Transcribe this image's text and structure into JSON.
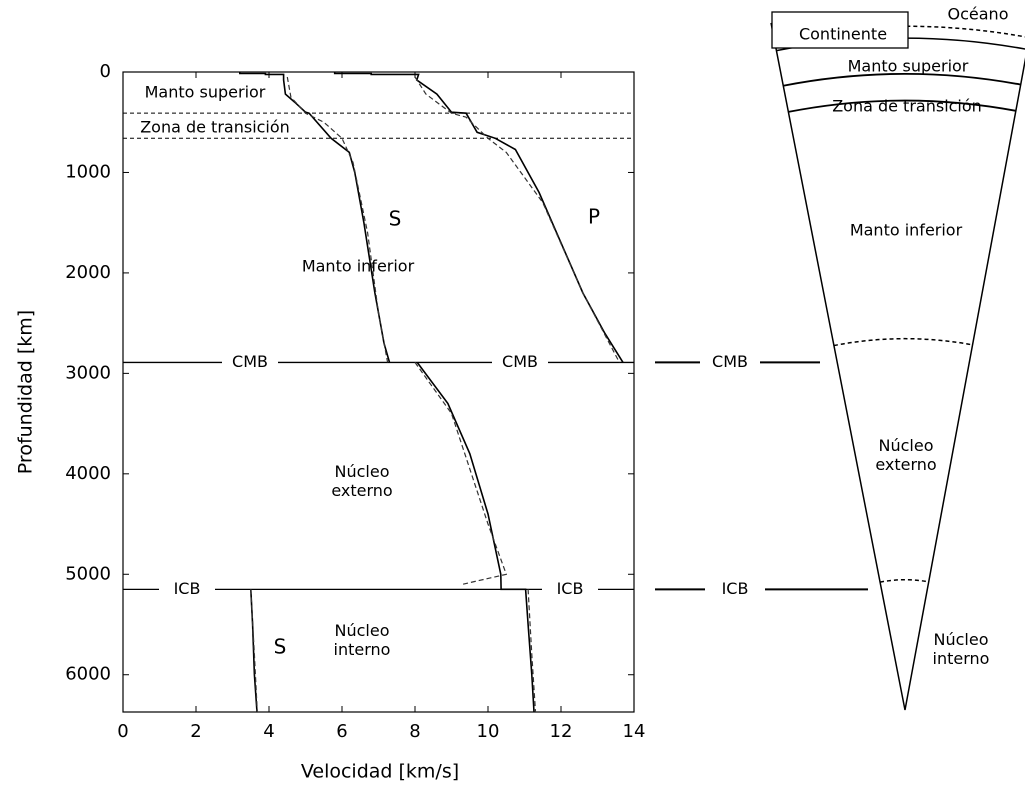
{
  "chart_data": {
    "type": "line",
    "xlabel": "Velocidad [km/s]",
    "ylabel": "Profundidad [km]",
    "xlim": [
      0,
      14
    ],
    "xticks": [
      0,
      2,
      4,
      6,
      8,
      10,
      12,
      14
    ],
    "ylim": [
      0,
      6371
    ],
    "yticks": [
      0,
      1000,
      2000,
      3000,
      4000,
      5000,
      6000
    ],
    "y_inverted": true,
    "grid": false,
    "series": [
      {
        "name": "S",
        "color": "#000000",
        "dash": false,
        "x": [
          3.2,
          3.2,
          3.9,
          3.9,
          4.4,
          4.4,
          4.45,
          4.7,
          5.0,
          5.1,
          5.7,
          6.2,
          6.35,
          6.6,
          6.9,
          7.15,
          7.3,
          null,
          3.5,
          3.55,
          3.6,
          3.67
        ],
        "values": [
          0,
          15,
          15,
          24,
          24,
          80,
          220,
          300,
          400,
          410,
          660,
          800,
          1000,
          1500,
          2200,
          2700,
          2891,
          null,
          5150,
          5500,
          6000,
          6371
        ]
      },
      {
        "name": "P",
        "color": "#000000",
        "dash": false,
        "x": [
          5.8,
          5.8,
          6.8,
          6.8,
          8.1,
          8.05,
          8.6,
          9.0,
          9.4,
          9.7,
          10.2,
          10.75,
          11.4,
          12.0,
          12.6,
          13.2,
          13.7,
          null,
          8.06,
          8.9,
          9.5,
          10.0,
          10.35,
          10.36,
          11.03,
          11.1,
          11.2,
          11.26
        ],
        "values": [
          0,
          15,
          15,
          24,
          24,
          80,
          220,
          400,
          410,
          600,
          660,
          771,
          1200,
          1700,
          2200,
          2600,
          2891,
          null,
          2891,
          3300,
          3800,
          4400,
          5000,
          5150,
          5150,
          5500,
          6000,
          6371
        ]
      },
      {
        "color": "#333333",
        "dash": true,
        "x": [
          4.5,
          4.6,
          5.0,
          5.5,
          6.0,
          6.3,
          6.7,
          7.0,
          7.25,
          null,
          3.5,
          3.6,
          3.68
        ],
        "values": [
          50,
          250,
          410,
          500,
          660,
          900,
          1600,
          2400,
          2891,
          null,
          5150,
          5800,
          6371
        ]
      },
      {
        "color": "#333333",
        "dash": true,
        "x": [
          8.0,
          8.3,
          9.0,
          9.4,
          10.0,
          10.5,
          11.5,
          12.6,
          13.6,
          null,
          8.0,
          9.0,
          10.0,
          10.5,
          9.3,
          null,
          11.1,
          11.2,
          11.3
        ],
        "values": [
          50,
          220,
          410,
          450,
          660,
          800,
          1300,
          2200,
          2891,
          null,
          2891,
          3400,
          4500,
          5000,
          5100,
          null,
          5150,
          5800,
          6371
        ]
      }
    ],
    "discontinuities": [
      410,
      660
    ],
    "boundaries": [
      {
        "label": "CMB",
        "depth": 2891
      },
      {
        "label": "ICB",
        "depth": 5150
      }
    ],
    "regions": [
      "Manto superior",
      "Zona de transición",
      "Manto inferior",
      "Núcleo externo",
      "Núcleo interno"
    ],
    "wedge_labels": [
      "Océano",
      "Continente",
      "Manto superior",
      "Zona de transición",
      "Manto inferior",
      "Núcleo externo",
      "Núcleo interno"
    ]
  }
}
